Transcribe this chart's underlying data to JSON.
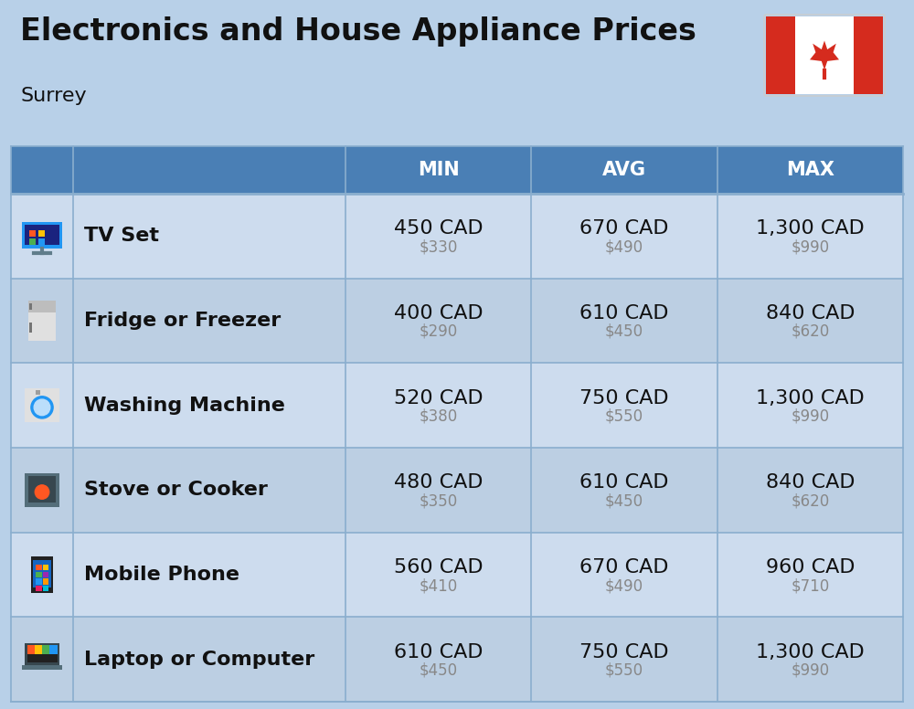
{
  "title_display": "Electronics and House Appliance Prices",
  "subtitle": "Surrey",
  "bg_color": "#b8d0e8",
  "header_bg_color": "#4a7fb5",
  "header_text_color": "#ffffff",
  "row_bg_even": "#cddcee",
  "row_bg_odd": "#bccfe3",
  "separator_color": "#8aaece",
  "col_headers": [
    "MIN",
    "AVG",
    "MAX"
  ],
  "rows": [
    {
      "name": "TV Set",
      "min_cad": "450 CAD",
      "min_usd": "$330",
      "avg_cad": "670 CAD",
      "avg_usd": "$490",
      "max_cad": "1,300 CAD",
      "max_usd": "$990"
    },
    {
      "name": "Fridge or Freezer",
      "min_cad": "400 CAD",
      "min_usd": "$290",
      "avg_cad": "610 CAD",
      "avg_usd": "$450",
      "max_cad": "840 CAD",
      "max_usd": "$620"
    },
    {
      "name": "Washing Machine",
      "min_cad": "520 CAD",
      "min_usd": "$380",
      "avg_cad": "750 CAD",
      "avg_usd": "$550",
      "max_cad": "1,300 CAD",
      "max_usd": "$990"
    },
    {
      "name": "Stove or Cooker",
      "min_cad": "480 CAD",
      "min_usd": "$350",
      "avg_cad": "610 CAD",
      "avg_usd": "$450",
      "max_cad": "840 CAD",
      "max_usd": "$620"
    },
    {
      "name": "Mobile Phone",
      "min_cad": "560 CAD",
      "min_usd": "$410",
      "avg_cad": "670 CAD",
      "avg_usd": "$490",
      "max_cad": "960 CAD",
      "max_usd": "$710"
    },
    {
      "name": "Laptop or Computer",
      "min_cad": "610 CAD",
      "min_usd": "$450",
      "avg_cad": "750 CAD",
      "avg_usd": "$550",
      "max_cad": "1,300 CAD",
      "max_usd": "$990"
    }
  ],
  "cad_fontsize": 16,
  "usd_fontsize": 12,
  "name_fontsize": 16,
  "header_fontsize": 15,
  "title_fontsize": 24,
  "subtitle_fontsize": 16
}
